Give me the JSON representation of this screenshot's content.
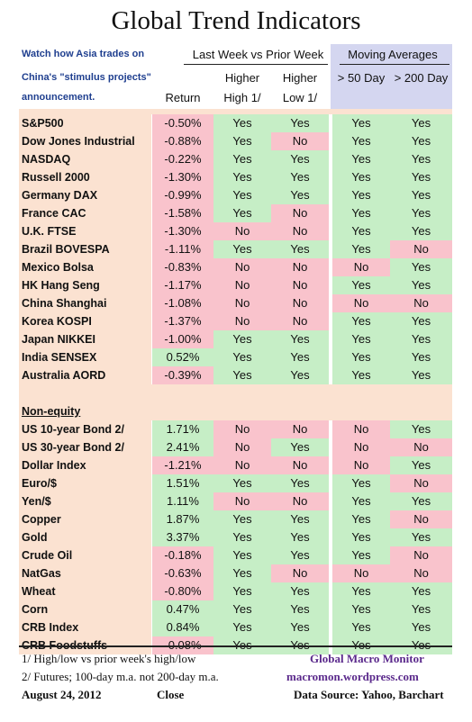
{
  "title": "Global Trend Indicators",
  "note_lines": [
    "Watch how Asia trades on",
    "China's \"stimulus projects\"",
    "announcement."
  ],
  "headers": {
    "group1": "Last Week vs Prior Week",
    "group2": "Moving Averages",
    "return": "Return",
    "higher": "Higher",
    "high": "High 1/",
    "low": "Low 1/",
    "ma50": "> 50 Day",
    "ma200": "> 200 Day"
  },
  "section_label": "Non-equity",
  "colors": {
    "green": "#c6eec6",
    "red": "#f9c3cc",
    "lavender": "#d4d6f0",
    "peach": "#fbe2d1"
  },
  "equities": [
    {
      "name": "S&P500",
      "ret": "-0.50%",
      "high": "Yes",
      "low": "Yes",
      "ma50": "Yes",
      "ma200": "Yes"
    },
    {
      "name": "Dow Jones Industrial",
      "ret": "-0.88%",
      "high": "Yes",
      "low": "No",
      "ma50": "Yes",
      "ma200": "Yes"
    },
    {
      "name": "NASDAQ",
      "ret": "-0.22%",
      "high": "Yes",
      "low": "Yes",
      "ma50": "Yes",
      "ma200": "Yes"
    },
    {
      "name": "Russell 2000",
      "ret": "-1.30%",
      "high": "Yes",
      "low": "Yes",
      "ma50": "Yes",
      "ma200": "Yes"
    },
    {
      "name": "Germany DAX",
      "ret": "-0.99%",
      "high": "Yes",
      "low": "Yes",
      "ma50": "Yes",
      "ma200": "Yes"
    },
    {
      "name": "France CAC",
      "ret": "-1.58%",
      "high": "Yes",
      "low": "No",
      "ma50": "Yes",
      "ma200": "Yes"
    },
    {
      "name": "U.K. FTSE",
      "ret": "-1.30%",
      "high": "No",
      "low": "No",
      "ma50": "Yes",
      "ma200": "Yes"
    },
    {
      "name": "Brazil BOVESPA",
      "ret": "-1.11%",
      "high": "Yes",
      "low": "Yes",
      "ma50": "Yes",
      "ma200": "No"
    },
    {
      "name": "Mexico Bolsa",
      "ret": "-0.83%",
      "high": "No",
      "low": "No",
      "ma50": "No",
      "ma200": "Yes"
    },
    {
      "name": "HK  Hang Seng",
      "ret": "-1.17%",
      "high": "No",
      "low": "No",
      "ma50": "Yes",
      "ma200": "Yes"
    },
    {
      "name": "China Shanghai",
      "ret": "-1.08%",
      "high": "No",
      "low": "No",
      "ma50": "No",
      "ma200": "No"
    },
    {
      "name": "Korea KOSPI",
      "ret": "-1.37%",
      "high": "No",
      "low": "No",
      "ma50": "Yes",
      "ma200": "Yes"
    },
    {
      "name": "Japan NIKKEI",
      "ret": "-1.00%",
      "high": "Yes",
      "low": "Yes",
      "ma50": "Yes",
      "ma200": "Yes"
    },
    {
      "name": "India SENSEX",
      "ret": "0.52%",
      "high": "Yes",
      "low": "Yes",
      "ma50": "Yes",
      "ma200": "Yes"
    },
    {
      "name": "Australia AORD",
      "ret": "-0.39%",
      "high": "Yes",
      "low": "Yes",
      "ma50": "Yes",
      "ma200": "Yes"
    }
  ],
  "non_equities": [
    {
      "name": "US 10-year Bond 2/",
      "ret": "1.71%",
      "high": "No",
      "low": "No",
      "ma50": "No",
      "ma200": "Yes"
    },
    {
      "name": "US 30-year Bond 2/",
      "ret": "2.41%",
      "high": "No",
      "low": "Yes",
      "ma50": "No",
      "ma200": "No"
    },
    {
      "name": "Dollar Index",
      "ret": "-1.21%",
      "high": "No",
      "low": "No",
      "ma50": "No",
      "ma200": "Yes"
    },
    {
      "name": "Euro/$",
      "ret": "1.51%",
      "high": "Yes",
      "low": "Yes",
      "ma50": "Yes",
      "ma200": "No"
    },
    {
      "name": "Yen/$",
      "ret": "1.11%",
      "high": "No",
      "low": "No",
      "ma50": "Yes",
      "ma200": "Yes"
    },
    {
      "name": "Copper",
      "ret": "1.87%",
      "high": "Yes",
      "low": "Yes",
      "ma50": "Yes",
      "ma200": "No"
    },
    {
      "name": "Gold",
      "ret": "3.37%",
      "high": "Yes",
      "low": "Yes",
      "ma50": "Yes",
      "ma200": "Yes"
    },
    {
      "name": "Crude Oil",
      "ret": "-0.18%",
      "high": "Yes",
      "low": "Yes",
      "ma50": "Yes",
      "ma200": "No"
    },
    {
      "name": "NatGas",
      "ret": "-0.63%",
      "high": "Yes",
      "low": "No",
      "ma50": "No",
      "ma200": "No"
    },
    {
      "name": "Wheat",
      "ret": "-0.80%",
      "high": "Yes",
      "low": "Yes",
      "ma50": "Yes",
      "ma200": "Yes"
    },
    {
      "name": "Corn",
      "ret": "0.47%",
      "high": "Yes",
      "low": "Yes",
      "ma50": "Yes",
      "ma200": "Yes"
    },
    {
      "name": "CRB Index",
      "ret": "0.84%",
      "high": "Yes",
      "low": "Yes",
      "ma50": "Yes",
      "ma200": "Yes"
    },
    {
      "name": "CRB Foodstuffs",
      "ret": "-0.08%",
      "high": "Yes",
      "low": "Yes",
      "ma50": "Yes",
      "ma200": "Yes"
    }
  ],
  "footer": {
    "note1": "1/  High/low vs prior week's high/low",
    "note2": "2/  Futures;  100-day m.a. not 200-day m.a.",
    "date": "August 24, 2012",
    "close": "Close",
    "brand": "Global Macro Monitor",
    "site": "macromon.wordpress.com",
    "source": "Data Source: Yahoo, Barchart"
  }
}
